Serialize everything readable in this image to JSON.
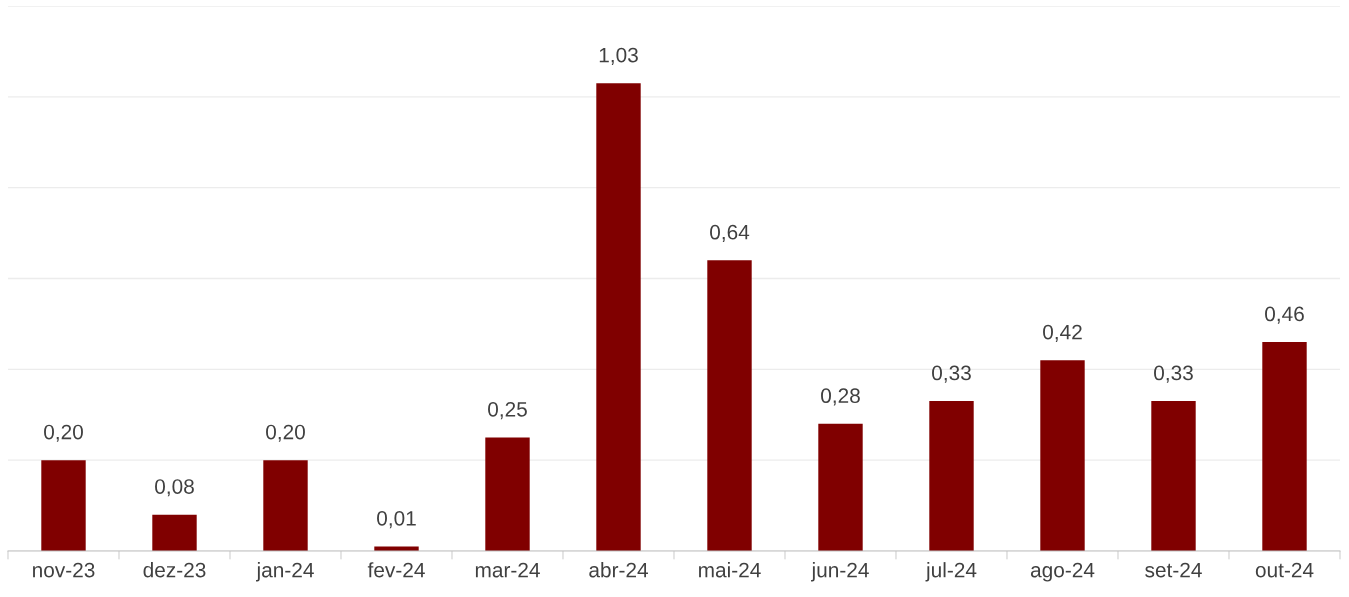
{
  "chart_data": {
    "type": "bar",
    "categories": [
      "nov-23",
      "dez-23",
      "jan-24",
      "fev-24",
      "mar-24",
      "abr-24",
      "mai-24",
      "jun-24",
      "jul-24",
      "ago-24",
      "set-24",
      "out-24"
    ],
    "values": [
      0.2,
      0.08,
      0.2,
      0.01,
      0.25,
      1.03,
      0.64,
      0.28,
      0.33,
      0.42,
      0.33,
      0.46
    ],
    "value_labels": [
      "0,20",
      "0,08",
      "0,20",
      "0,01",
      "0,25",
      "1,03",
      "0,64",
      "0,28",
      "0,33",
      "0,42",
      "0,33",
      "0,46"
    ],
    "color": "#800000",
    "ylim": [
      0,
      1.2
    ],
    "yticks": [
      {
        "value": 0,
        "label": null
      },
      {
        "value": 0.2,
        "label": null
      },
      {
        "value": 0.4,
        "label": null
      },
      {
        "value": 0.6,
        "label": null
      },
      {
        "value": 0.8,
        "label": null
      },
      {
        "value": 1.0,
        "label": null
      },
      {
        "value": 1.2,
        "label": null
      }
    ],
    "grid": "y",
    "tick_labels": "x"
  }
}
